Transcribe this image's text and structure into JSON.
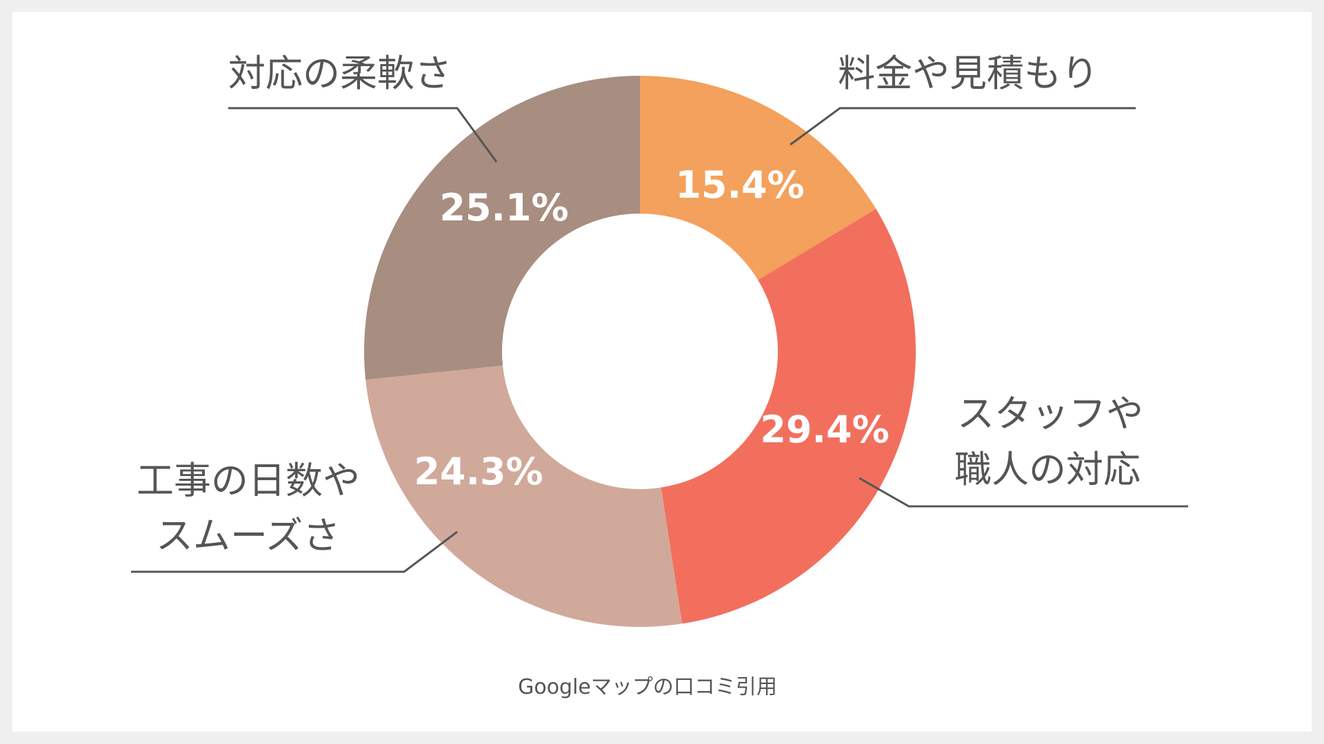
{
  "chart_data": {
    "type": "pie",
    "donut": true,
    "segments": [
      {
        "label_lines": [
          "料金や見積もり"
        ],
        "value": 15.4,
        "value_label": "15.4%",
        "color": "#f3a15c"
      },
      {
        "label_lines": [
          "スタッフや",
          "職人の対応"
        ],
        "value": 29.4,
        "value_label": "29.4%",
        "color": "#f26f5e"
      },
      {
        "label_lines": [
          "工事の日数や",
          "スムーズさ"
        ],
        "value": 24.3,
        "value_label": "24.3%",
        "color": "#d0a99b"
      },
      {
        "label_lines": [
          "対応の柔軟さ"
        ],
        "value": 25.1,
        "value_label": "25.1%",
        "color": "#a88d81"
      }
    ],
    "source": "Googleマップの口コミ引用"
  }
}
